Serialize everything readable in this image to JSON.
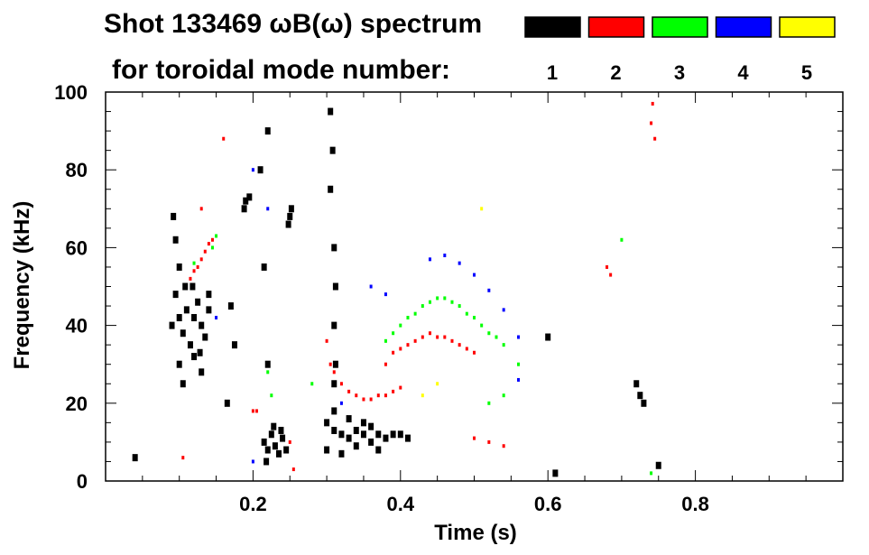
{
  "chart_data": {
    "type": "scatter",
    "title_line1": "Shot 133469 ωB(ω) spectrum",
    "title_line2": "for toroidal mode number:",
    "xlabel": "Time (s)",
    "ylabel": "Frequency (kHz)",
    "xlim": [
      0.0,
      1.0
    ],
    "ylim": [
      0,
      100
    ],
    "x_ticks": [
      {
        "value": 0.2,
        "label": "0.2"
      },
      {
        "value": 0.4,
        "label": "0.4"
      },
      {
        "value": 0.6,
        "label": "0.6"
      },
      {
        "value": 0.8,
        "label": "0.8"
      }
    ],
    "y_ticks": [
      {
        "value": 0,
        "label": "0"
      },
      {
        "value": 20,
        "label": "20"
      },
      {
        "value": 40,
        "label": "40"
      },
      {
        "value": 60,
        "label": "60"
      },
      {
        "value": 80,
        "label": "80"
      },
      {
        "value": 100,
        "label": "100"
      }
    ],
    "legend_position": "top",
    "grid": false,
    "series": [
      {
        "name": "1",
        "color": "#000000",
        "points": [
          [
            0.09,
            40
          ],
          [
            0.095,
            48
          ],
          [
            0.1,
            42
          ],
          [
            0.105,
            38
          ],
          [
            0.11,
            44
          ],
          [
            0.115,
            35
          ],
          [
            0.12,
            42
          ],
          [
            0.125,
            46
          ],
          [
            0.13,
            40
          ],
          [
            0.135,
            37
          ],
          [
            0.14,
            44
          ],
          [
            0.1,
            55
          ],
          [
            0.095,
            62
          ],
          [
            0.092,
            68
          ],
          [
            0.1,
            30
          ],
          [
            0.105,
            25
          ],
          [
            0.13,
            28
          ],
          [
            0.12,
            32
          ],
          [
            0.108,
            50
          ],
          [
            0.118,
            50
          ],
          [
            0.128,
            33
          ],
          [
            0.14,
            48
          ],
          [
            0.19,
            72
          ],
          [
            0.195,
            73
          ],
          [
            0.188,
            70
          ],
          [
            0.25,
            68
          ],
          [
            0.248,
            66
          ],
          [
            0.252,
            70
          ],
          [
            0.215,
            10
          ],
          [
            0.22,
            8
          ],
          [
            0.225,
            12
          ],
          [
            0.23,
            9
          ],
          [
            0.235,
            7
          ],
          [
            0.24,
            11
          ],
          [
            0.245,
            8
          ],
          [
            0.218,
            5
          ],
          [
            0.228,
            14
          ],
          [
            0.238,
            13
          ],
          [
            0.21,
            80
          ],
          [
            0.22,
            90
          ],
          [
            0.215,
            55
          ],
          [
            0.22,
            30
          ],
          [
            0.17,
            45
          ],
          [
            0.175,
            35
          ],
          [
            0.165,
            20
          ],
          [
            0.305,
            95
          ],
          [
            0.308,
            85
          ],
          [
            0.305,
            75
          ],
          [
            0.31,
            60
          ],
          [
            0.312,
            50
          ],
          [
            0.31,
            40
          ],
          [
            0.312,
            30
          ],
          [
            0.31,
            25
          ],
          [
            0.3,
            15
          ],
          [
            0.31,
            13
          ],
          [
            0.32,
            12
          ],
          [
            0.33,
            11
          ],
          [
            0.34,
            13
          ],
          [
            0.35,
            12
          ],
          [
            0.36,
            10
          ],
          [
            0.37,
            12
          ],
          [
            0.38,
            11
          ],
          [
            0.39,
            12
          ],
          [
            0.4,
            12
          ],
          [
            0.41,
            11
          ],
          [
            0.3,
            8
          ],
          [
            0.32,
            7
          ],
          [
            0.34,
            9
          ],
          [
            0.36,
            14
          ],
          [
            0.31,
            18
          ],
          [
            0.33,
            16
          ],
          [
            0.35,
            15
          ],
          [
            0.37,
            8
          ],
          [
            0.04,
            6
          ],
          [
            0.6,
            37
          ],
          [
            0.72,
            25
          ],
          [
            0.725,
            22
          ],
          [
            0.73,
            20
          ],
          [
            0.75,
            4
          ],
          [
            0.61,
            2
          ]
        ]
      },
      {
        "name": "2",
        "color": "#ff0000",
        "points": [
          [
            0.115,
            52
          ],
          [
            0.12,
            54
          ],
          [
            0.125,
            55
          ],
          [
            0.13,
            57
          ],
          [
            0.135,
            59
          ],
          [
            0.14,
            61
          ],
          [
            0.145,
            62
          ],
          [
            0.2,
            18
          ],
          [
            0.205,
            18
          ],
          [
            0.25,
            10
          ],
          [
            0.255,
            3
          ],
          [
            0.105,
            6
          ],
          [
            0.16,
            88
          ],
          [
            0.13,
            70
          ],
          [
            0.3,
            36
          ],
          [
            0.305,
            30
          ],
          [
            0.31,
            28
          ],
          [
            0.32,
            25
          ],
          [
            0.33,
            23
          ],
          [
            0.34,
            22
          ],
          [
            0.35,
            21
          ],
          [
            0.36,
            21
          ],
          [
            0.37,
            22
          ],
          [
            0.38,
            22
          ],
          [
            0.39,
            23
          ],
          [
            0.4,
            24
          ],
          [
            0.38,
            30
          ],
          [
            0.39,
            33
          ],
          [
            0.4,
            34
          ],
          [
            0.41,
            35
          ],
          [
            0.42,
            36
          ],
          [
            0.43,
            37
          ],
          [
            0.44,
            38
          ],
          [
            0.45,
            37
          ],
          [
            0.46,
            37
          ],
          [
            0.47,
            36
          ],
          [
            0.48,
            35
          ],
          [
            0.49,
            34
          ],
          [
            0.5,
            33
          ],
          [
            0.68,
            55
          ],
          [
            0.685,
            53
          ],
          [
            0.74,
            92
          ],
          [
            0.745,
            88
          ],
          [
            0.742,
            97
          ],
          [
            0.52,
            10
          ],
          [
            0.54,
            9
          ],
          [
            0.5,
            11
          ]
        ]
      },
      {
        "name": "3",
        "color": "#00ff00",
        "points": [
          [
            0.145,
            60
          ],
          [
            0.15,
            63
          ],
          [
            0.22,
            28
          ],
          [
            0.225,
            22
          ],
          [
            0.28,
            25
          ],
          [
            0.38,
            36
          ],
          [
            0.39,
            38
          ],
          [
            0.4,
            40
          ],
          [
            0.41,
            42
          ],
          [
            0.42,
            43
          ],
          [
            0.43,
            45
          ],
          [
            0.44,
            46
          ],
          [
            0.45,
            47
          ],
          [
            0.46,
            47
          ],
          [
            0.47,
            46
          ],
          [
            0.48,
            45
          ],
          [
            0.49,
            43
          ],
          [
            0.5,
            42
          ],
          [
            0.51,
            40
          ],
          [
            0.52,
            38
          ],
          [
            0.53,
            37
          ],
          [
            0.54,
            35
          ],
          [
            0.56,
            30
          ],
          [
            0.52,
            20
          ],
          [
            0.54,
            22
          ],
          [
            0.7,
            62
          ],
          [
            0.74,
            2
          ],
          [
            0.12,
            56
          ]
        ]
      },
      {
        "name": "4",
        "color": "#0000ff",
        "points": [
          [
            0.2,
            80
          ],
          [
            0.22,
            70
          ],
          [
            0.36,
            50
          ],
          [
            0.38,
            48
          ],
          [
            0.44,
            57
          ],
          [
            0.46,
            58
          ],
          [
            0.48,
            56
          ],
          [
            0.5,
            53
          ],
          [
            0.52,
            49
          ],
          [
            0.54,
            44
          ],
          [
            0.56,
            37
          ],
          [
            0.56,
            26
          ],
          [
            0.2,
            5
          ],
          [
            0.32,
            20
          ],
          [
            0.15,
            42
          ]
        ]
      },
      {
        "name": "5",
        "color": "#ffff00",
        "points": [
          [
            0.51,
            70
          ],
          [
            0.43,
            22
          ],
          [
            0.45,
            25
          ]
        ]
      }
    ]
  }
}
